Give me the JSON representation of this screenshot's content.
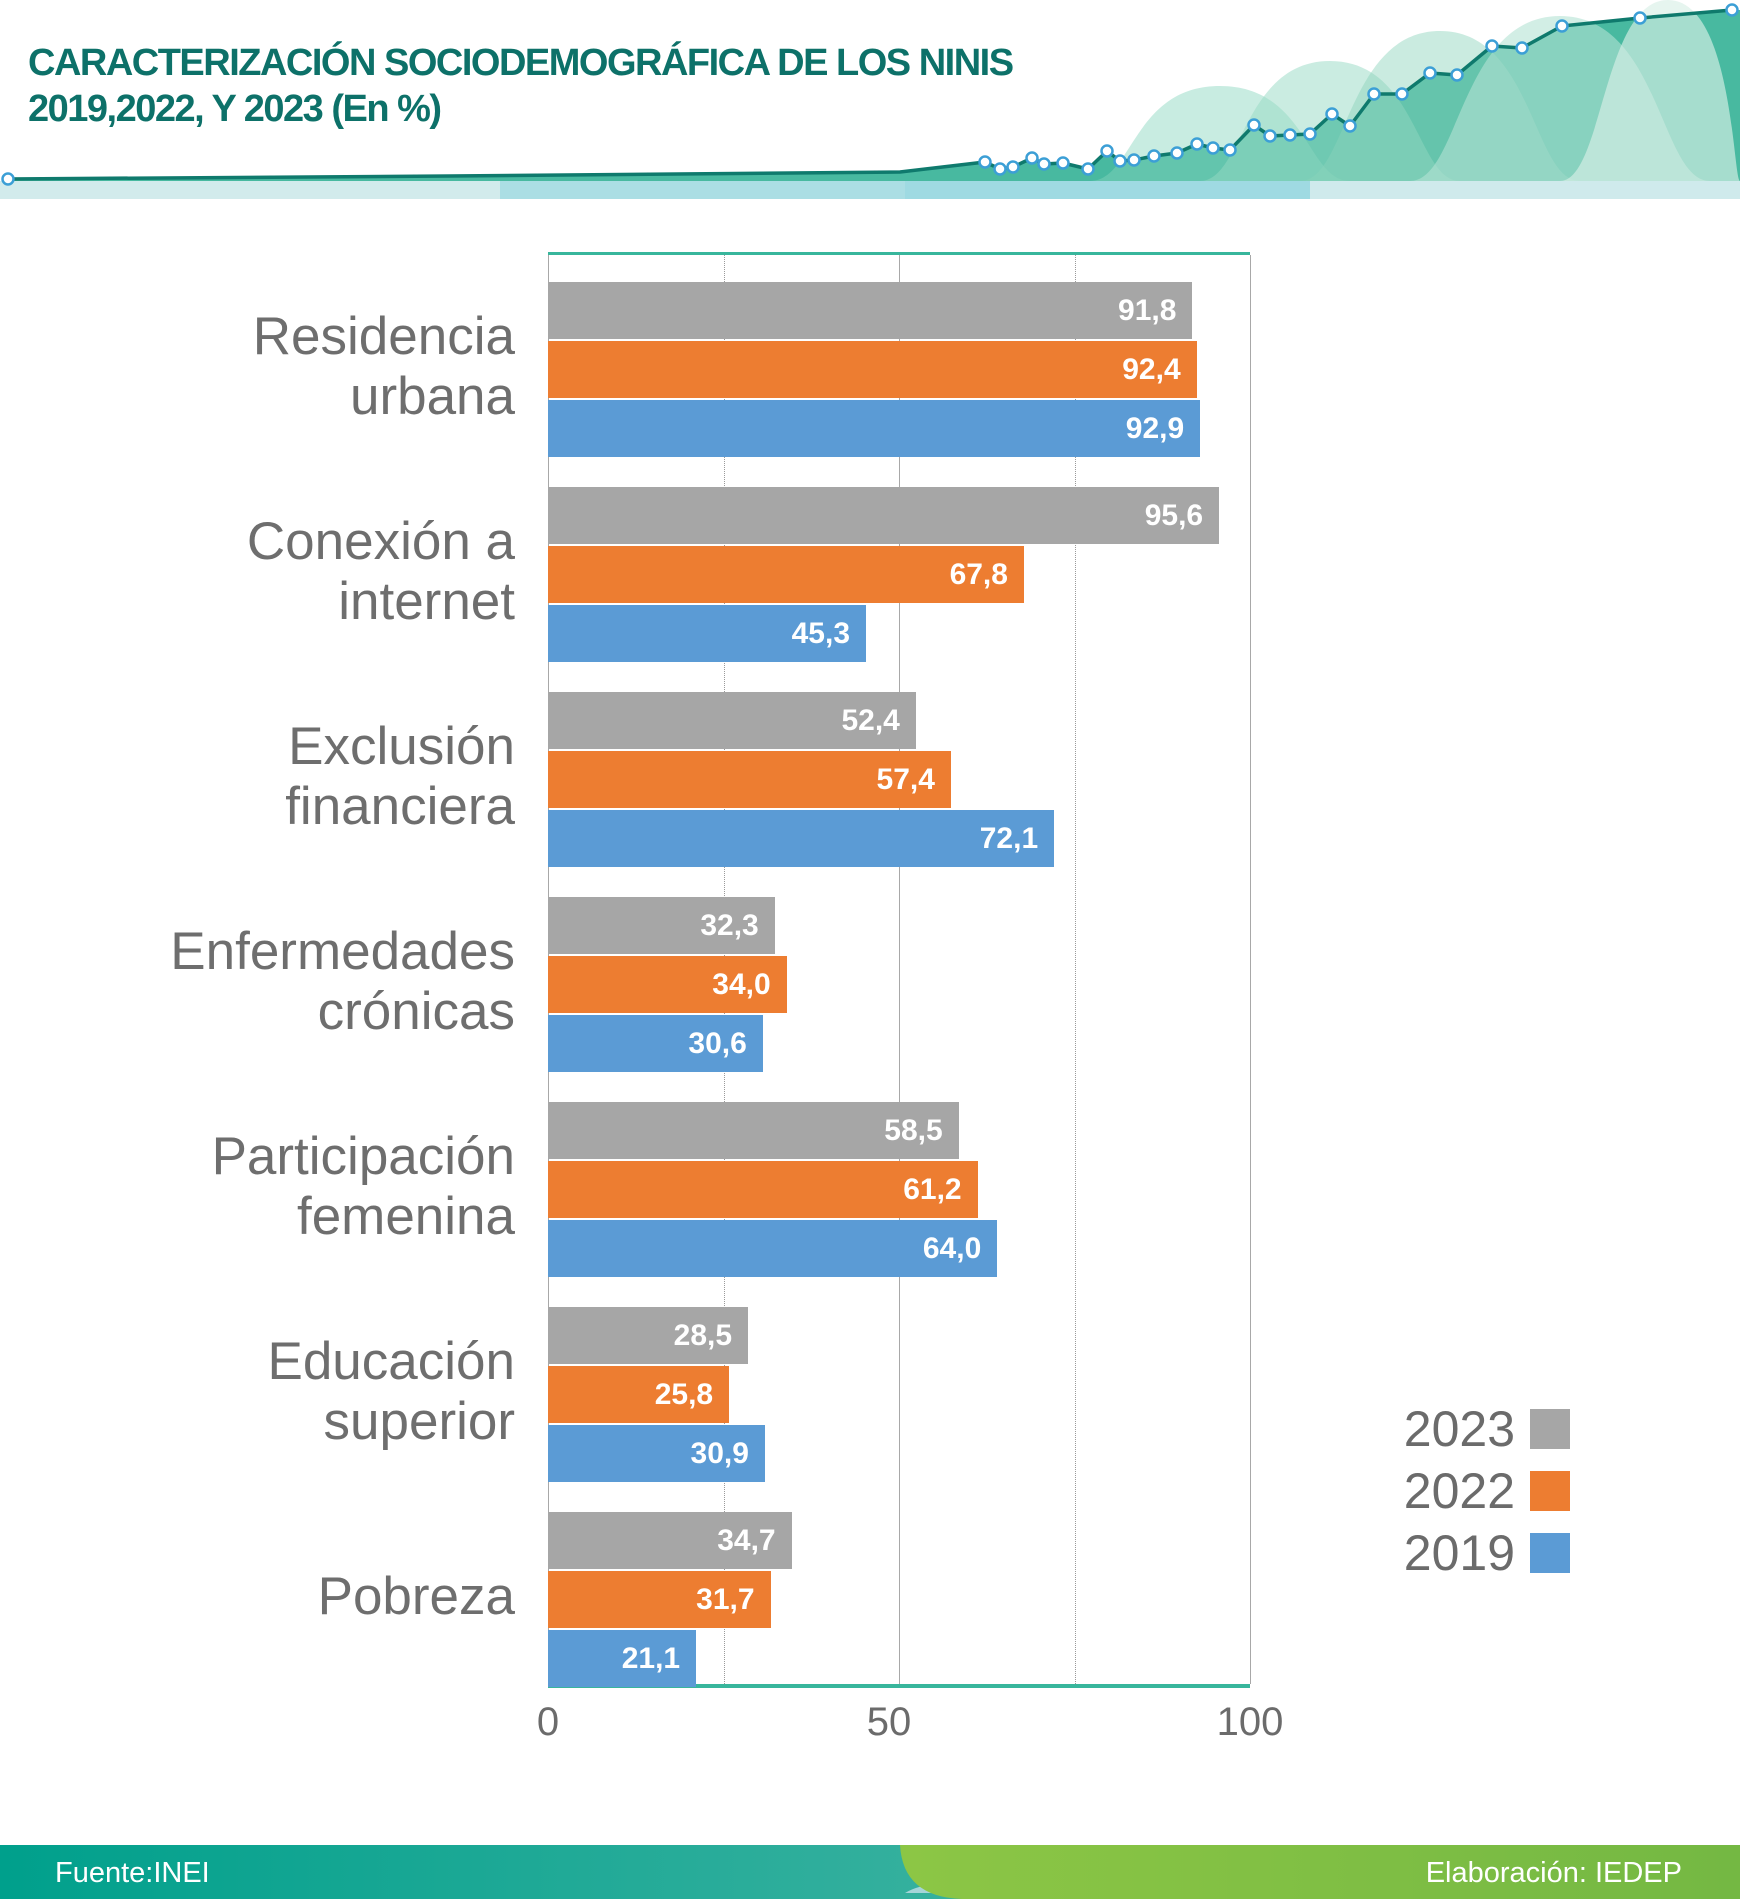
{
  "header": {
    "title_line1": "CARACTERIZACIÓN SOCIODEMOGRÁFICA DE LOS NINIS",
    "title_line2": "2019,2022, Y 2023 (En %)"
  },
  "chart_data": {
    "type": "bar",
    "orientation": "horizontal",
    "title": "CARACTERIZACIÓN SOCIODEMOGRÁFICA DE LOS NINIS 2019,2022, Y 2023 (En %)",
    "categories": [
      "Residencia urbana",
      "Conexión a internet",
      "Exclusión financiera",
      "Enfermedades crónicas",
      "Participación femenina",
      "Educación superior",
      "Pobreza"
    ],
    "category_lines": [
      [
        "Residencia",
        "urbana"
      ],
      [
        "Conexión a",
        "internet"
      ],
      [
        "Exclusión",
        "financiera"
      ],
      [
        "Enfermedades",
        "crónicas"
      ],
      [
        "Participación",
        "femenina"
      ],
      [
        "Educación",
        "superior"
      ],
      [
        "Pobreza"
      ]
    ],
    "series": [
      {
        "name": "2023",
        "color": "#a6a6a6",
        "values": [
          91.8,
          95.6,
          52.4,
          32.3,
          58.5,
          28.5,
          34.7
        ],
        "labels": [
          "91,8",
          "95,6",
          "52,4",
          "32,3",
          "58,5",
          "28,5",
          "34,7"
        ]
      },
      {
        "name": "2022",
        "color": "#ed7d31",
        "values": [
          92.4,
          67.8,
          57.4,
          34.0,
          61.2,
          25.8,
          31.7
        ],
        "labels": [
          "92,4",
          "67,8",
          "57,4",
          "34,0",
          "61,2",
          "25,8",
          "31,7"
        ]
      },
      {
        "name": "2019",
        "color": "#5b9bd5",
        "values": [
          92.9,
          45.3,
          72.1,
          30.6,
          64.0,
          30.9,
          21.1
        ],
        "labels": [
          "92,9",
          "45,3",
          "72,1",
          "30,6",
          "64,0",
          "30,9",
          "21,1"
        ]
      }
    ],
    "xlim": [
      0,
      100
    ],
    "x_ticks": [
      {
        "value": 0,
        "label": "0"
      },
      {
        "value": 50,
        "label": "50"
      },
      {
        "value": 100,
        "label": "100"
      }
    ],
    "grid_solid": [
      0,
      50,
      100
    ],
    "grid_dotted": [
      25,
      75
    ],
    "grid": true,
    "legend_position": "right",
    "value_labels_inside_bars": true
  },
  "legend": {
    "items": [
      {
        "label": "2023",
        "color": "#a6a6a6"
      },
      {
        "label": "2022",
        "color": "#ed7d31"
      },
      {
        "label": "2019",
        "color": "#5b9bd5"
      }
    ]
  },
  "footer": {
    "source": "Fuente:INEI",
    "elaboration": "Elaboración: IEDEP"
  },
  "colors": {
    "title_teal": "#0d7169",
    "axis_teal": "#38b69c",
    "label_gray": "#6e6e6e",
    "bar_2023": "#a6a6a6",
    "bar_2022": "#ed7d31",
    "bar_2019": "#5b9bd5",
    "footer_teal": "#00a08c",
    "footer_green": "#7dc242"
  }
}
